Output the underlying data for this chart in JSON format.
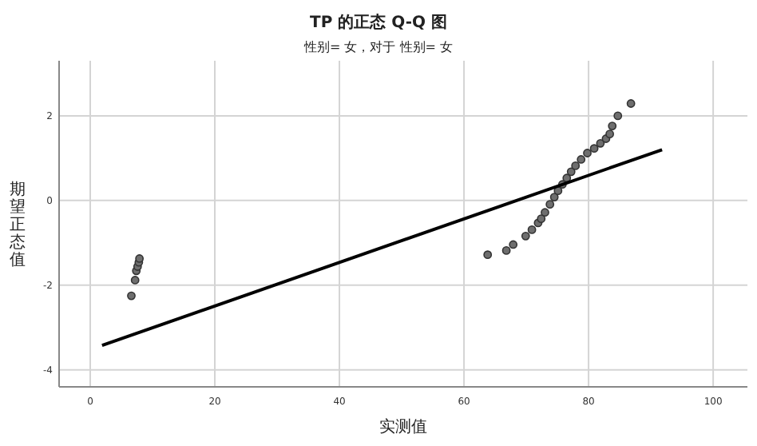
{
  "chart_data": {
    "type": "scatter",
    "title": "TP 的正态 Q-Q 图",
    "subtitle": "性别= 女，对于 性别= 女",
    "xlabel": "实测值",
    "ylabel": "期望正态值",
    "series": [
      {
        "marker": "circle",
        "color": "#6e6e6e",
        "x": [
          6.6,
          7.2,
          7.4,
          7.6,
          7.8,
          7.9,
          63.8,
          66.8,
          67.9,
          69.9,
          70.9,
          71.9,
          72.4,
          73.0,
          73.8,
          74.5,
          75.1,
          75.8,
          76.5,
          77.2,
          77.9,
          78.8,
          79.8,
          80.9,
          81.9,
          82.8,
          83.4,
          83.8,
          84.7,
          86.8
        ],
        "values": [
          -2.25,
          -1.88,
          -1.66,
          -1.56,
          -1.46,
          -1.37,
          -1.28,
          -1.18,
          -1.04,
          -0.84,
          -0.69,
          -0.53,
          -0.43,
          -0.28,
          -0.09,
          0.08,
          0.23,
          0.38,
          0.53,
          0.68,
          0.82,
          0.97,
          1.12,
          1.23,
          1.35,
          1.46,
          1.57,
          1.76,
          2.0,
          2.29
        ]
      },
      {
        "type": "line",
        "color": "#000000",
        "x": [
          1.9,
          91.8
        ],
        "values": [
          -3.42,
          1.2
        ]
      }
    ],
    "xlim": [
      -5,
      105.5
    ],
    "ylim": [
      -4.4,
      3.3
    ],
    "xticks": [
      0,
      20,
      40,
      60,
      80,
      100
    ],
    "yticks": [
      {
        "value": 2,
        "label": "2"
      },
      {
        "value": 0,
        "label": "0"
      },
      {
        "value": -2,
        "label": "-2"
      },
      {
        "value": -4,
        "label": "-4"
      }
    ],
    "grid": true
  }
}
